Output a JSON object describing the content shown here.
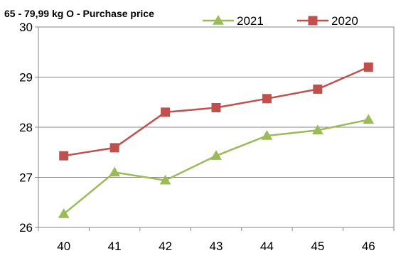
{
  "chart_data": {
    "type": "line",
    "title": "65 - 79,99 kg O - Purchase price",
    "xlabel": "",
    "ylabel": "",
    "categories": [
      "40",
      "41",
      "42",
      "43",
      "44",
      "45",
      "46"
    ],
    "ylim": [
      26,
      30
    ],
    "yticks": [
      "26",
      "27",
      "28",
      "29",
      "30"
    ],
    "grid": "horizontal",
    "legend": "top-right",
    "series": [
      {
        "name": "2021",
        "color": "#9bbb59",
        "marker": "triangle",
        "values": [
          26.27,
          27.1,
          26.94,
          27.43,
          27.83,
          27.94,
          28.15
        ]
      },
      {
        "name": "2020",
        "color": "#c0504d",
        "marker": "square",
        "values": [
          27.43,
          27.59,
          28.3,
          28.39,
          28.57,
          28.76,
          29.2
        ]
      }
    ]
  }
}
